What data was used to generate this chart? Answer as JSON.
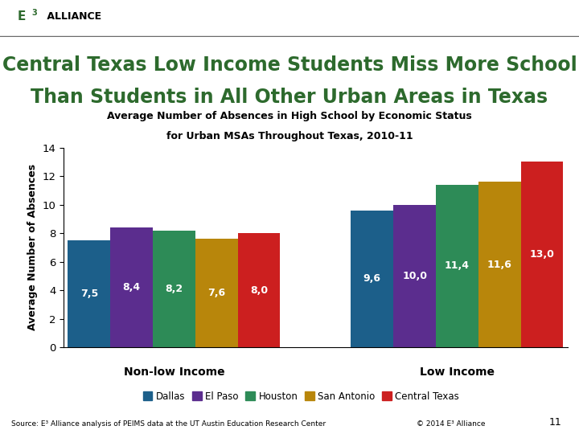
{
  "title_line1": "Central Texas Low Income Students Miss More School",
  "title_line2": "Than Students in All Other Urban Areas in Texas",
  "subtitle_line1": "Average Number of Absences in High School by Economic Status",
  "subtitle_line2": "for Urban MSAs Throughout Texas, 2010-11",
  "ylabel": "Average Number of Absences",
  "group_labels": [
    "Non-low Income",
    "Low Income"
  ],
  "categories": [
    "Dallas",
    "El Paso",
    "Houston",
    "San Antonio",
    "Central Texas"
  ],
  "colors": [
    "#1c5f8a",
    "#5b2d8e",
    "#2d8b57",
    "#b8860b",
    "#cc1f1f"
  ],
  "non_low_income": [
    7.5,
    8.4,
    8.2,
    7.6,
    8.0
  ],
  "low_income": [
    9.6,
    10.0,
    11.4,
    11.6,
    13.0
  ],
  "ylim": [
    0,
    14
  ],
  "yticks": [
    0,
    2,
    4,
    6,
    8,
    10,
    12,
    14
  ],
  "bg_color": "#ffffff",
  "title_color": "#2d6a2d",
  "bar_label_fontsize": 9,
  "source_text": "Source: E³ Alliance analysis of PEIMS data at the UT Austin Education Research Center",
  "copyright_text": "© 2014 E³ Alliance",
  "page_number": "11",
  "header_bar_color": "#6b6b6b"
}
